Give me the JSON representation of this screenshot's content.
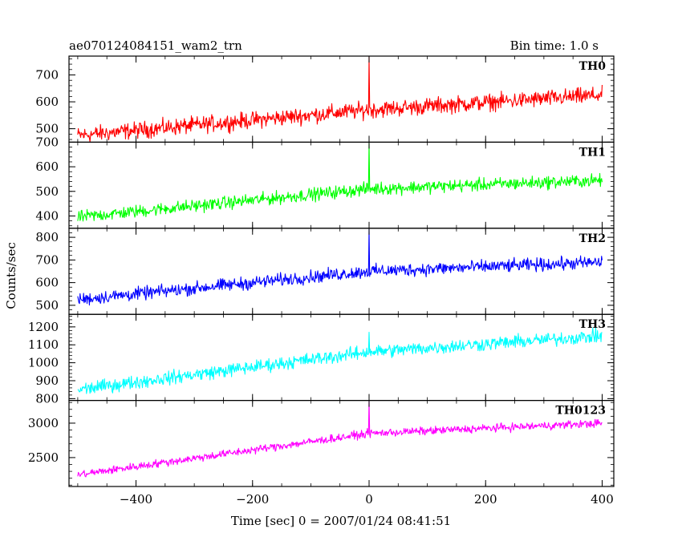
{
  "header": {
    "left_title": "ae070124084151_wam2_trn",
    "right_title": "Bin time: 1.0 s"
  },
  "chart_data": {
    "type": "line",
    "title": "ae070124084151_wam2_trn",
    "subtitle": "Bin time: 1.0 s",
    "xlabel": "Time [sec] 0 = 2007/01/24 08:41:51",
    "ylabel": "Counts/sec",
    "xlim": [
      -515,
      420
    ],
    "x_ticks": [
      -400,
      -200,
      0,
      200,
      400
    ],
    "x_tick_labels": [
      "−400",
      "−200",
      "0",
      "200",
      "400"
    ],
    "x_data_range": [
      -500,
      400
    ],
    "grid": false,
    "panels": [
      {
        "name": "TH0",
        "color": "#ff0000",
        "ylim": [
          450,
          770
        ],
        "y_ticks": [
          500,
          600,
          700
        ],
        "trend": {
          "x": [
            -500,
            0,
            400
          ],
          "y": [
            475,
            570,
            625
          ]
        },
        "noise_amplitude": 45,
        "spike": {
          "x": 0,
          "y": 770
        }
      },
      {
        "name": "TH1",
        "color": "#00ff00",
        "ylim": [
          350,
          700
        ],
        "y_ticks": [
          400,
          500,
          600,
          700
        ],
        "trend": {
          "x": [
            -500,
            0,
            400
          ],
          "y": [
            395,
            510,
            545
          ]
        },
        "noise_amplitude": 38,
        "spike": {
          "x": 0,
          "y": 700
        }
      },
      {
        "name": "TH2",
        "color": "#0000ff",
        "ylim": [
          460,
          840
        ],
        "y_ticks": [
          500,
          600,
          700,
          800
        ],
        "trend": {
          "x": [
            -500,
            0,
            400
          ],
          "y": [
            525,
            650,
            690
          ]
        },
        "noise_amplitude": 42,
        "spike": {
          "x": 0,
          "y": 840
        }
      },
      {
        "name": "TH3",
        "color": "#00ffff",
        "ylim": [
          790,
          1270
        ],
        "y_ticks": [
          800,
          900,
          1000,
          1100,
          1200
        ],
        "trend": {
          "x": [
            -500,
            0,
            400
          ],
          "y": [
            850,
            1060,
            1150
          ]
        },
        "noise_amplitude": 55,
        "spike": {
          "x": 0,
          "y": 1170
        }
      },
      {
        "name": "TH0123",
        "color": "#ff00ff",
        "ylim": [
          2080,
          3330
        ],
        "y_ticks": [
          2500,
          3000
        ],
        "trend": {
          "x": [
            -500,
            0,
            400
          ],
          "y": [
            2250,
            2850,
            3000
          ]
        },
        "noise_amplitude": 85,
        "spike": {
          "x": 0,
          "y": 3330
        }
      }
    ]
  }
}
